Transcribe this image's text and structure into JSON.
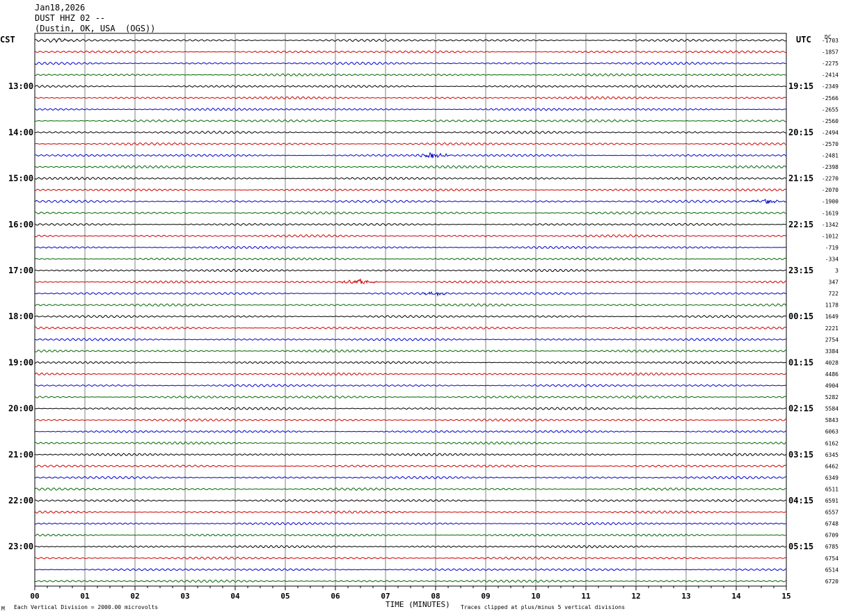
{
  "header": {
    "date": "Jan18,2026",
    "station": "DUST HHZ 02 --",
    "location": "(Dustin, OK, USA  (OGS))"
  },
  "left_tz": "CST",
  "right_tz": "UTC",
  "dc_label": "DC",
  "footer": {
    "scale": "Each Vertical Division = 2000.00 microvolts",
    "xlabel": "TIME (MINUTES)",
    "clip": "Traces clipped at plus/minus 5 vertical divisions",
    "mark": "M"
  },
  "colors": {
    "trace_cycle": [
      "#000000",
      "#cc0000",
      "#0000cc",
      "#006600"
    ],
    "grid": "#808080"
  },
  "chart_data": {
    "type": "line",
    "title": "DUST HHZ 02 --",
    "xlabel": "TIME (MINUTES)",
    "ylabel": "",
    "x_ticks": [
      "00",
      "01",
      "02",
      "03",
      "04",
      "05",
      "06",
      "07",
      "08",
      "09",
      "10",
      "11",
      "12",
      "13",
      "14",
      "15"
    ],
    "xlim": [
      0,
      15
    ],
    "trace_minutes": 15,
    "cst_hour_labels": [
      "13:00",
      "14:00",
      "15:00",
      "16:00",
      "17:00",
      "18:00",
      "19:00",
      "20:00",
      "21:00",
      "22:00",
      "23:00"
    ],
    "utc_hour_labels": [
      "19:15",
      "20:15",
      "21:15",
      "22:15",
      "23:15",
      "00:15",
      "01:15",
      "02:15",
      "03:15",
      "04:15",
      "05:15"
    ],
    "dc_offsets": [
      "-1703",
      "-1857",
      "-2275",
      "-2414",
      "-2349",
      "-2566",
      "-2655",
      "-2560",
      "-2494",
      "-2570",
      "-2481",
      "-2398",
      "-2270",
      "-2070",
      "-1900",
      "-1619",
      "-1342",
      "-1012",
      "-719",
      "-334",
      "3",
      "347",
      "722",
      "1178",
      "1649",
      "2221",
      "2754",
      "3384",
      "4028",
      "4486",
      "4904",
      "5282",
      "5584",
      "5843",
      "6063",
      "6162",
      "6345",
      "6462",
      "6349",
      "6511",
      "6591",
      "6557",
      "6748",
      "6709",
      "6785",
      "6754",
      "6514",
      "6720"
    ],
    "events": [
      {
        "trace": 0,
        "start_min": 0.1,
        "end_min": 0.9,
        "amplitude": 2
      },
      {
        "trace": 10,
        "start_min": 7.5,
        "end_min": 8.4,
        "amplitude": 4
      },
      {
        "trace": 14,
        "start_min": 14.2,
        "end_min": 15.0,
        "amplitude": 3
      },
      {
        "trace": 21,
        "start_min": 6.0,
        "end_min": 6.9,
        "amplitude": 4
      },
      {
        "trace": 22,
        "start_min": 7.6,
        "end_min": 8.3,
        "amplitude": 3
      }
    ]
  }
}
